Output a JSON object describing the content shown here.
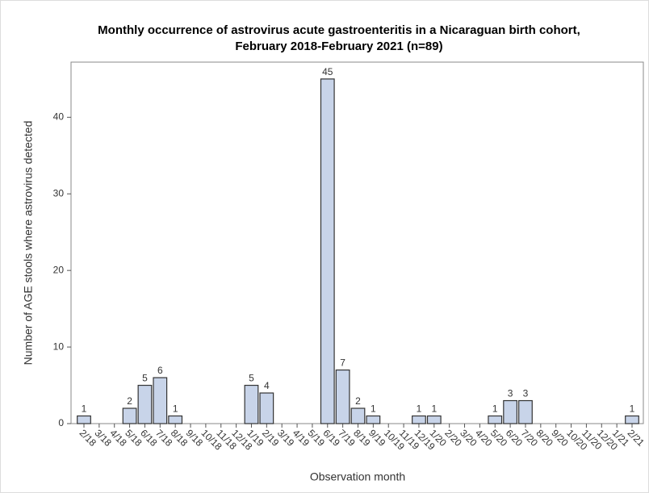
{
  "chart_data": {
    "type": "bar",
    "title": [
      "Monthly occurrence of astrovirus acute gastroenteritis in a Nicaraguan birth cohort,",
      "February 2018-February 2021 (n=89)"
    ],
    "x_label": "Observation month",
    "y_label": "Number of AGE stools where astrovirus detected",
    "categories": [
      "2/18",
      "3/18",
      "4/18",
      "5/18",
      "6/18",
      "7/18",
      "8/18",
      "9/18",
      "10/18",
      "11/18",
      "12/18",
      "1/19",
      "2/19",
      "3/19",
      "4/19",
      "5/19",
      "6/19",
      "7/19",
      "8/19",
      "9/19",
      "10/19",
      "11/19",
      "12/19",
      "1/20",
      "2/20",
      "3/20",
      "4/20",
      "5/20",
      "6/20",
      "7/20",
      "8/20",
      "9/20",
      "10/20",
      "11/20",
      "12/20",
      "1/21",
      "2/21"
    ],
    "values": [
      1,
      0,
      0,
      2,
      5,
      6,
      1,
      0,
      0,
      0,
      0,
      5,
      4,
      0,
      0,
      0,
      45,
      7,
      2,
      1,
      0,
      0,
      1,
      1,
      0,
      0,
      0,
      1,
      3,
      3,
      0,
      0,
      0,
      0,
      0,
      0,
      1
    ],
    "color": "#c8d4e9",
    "ylim": [
      0,
      47.2
    ],
    "yticks": [
      0,
      10,
      20,
      30,
      40
    ]
  }
}
